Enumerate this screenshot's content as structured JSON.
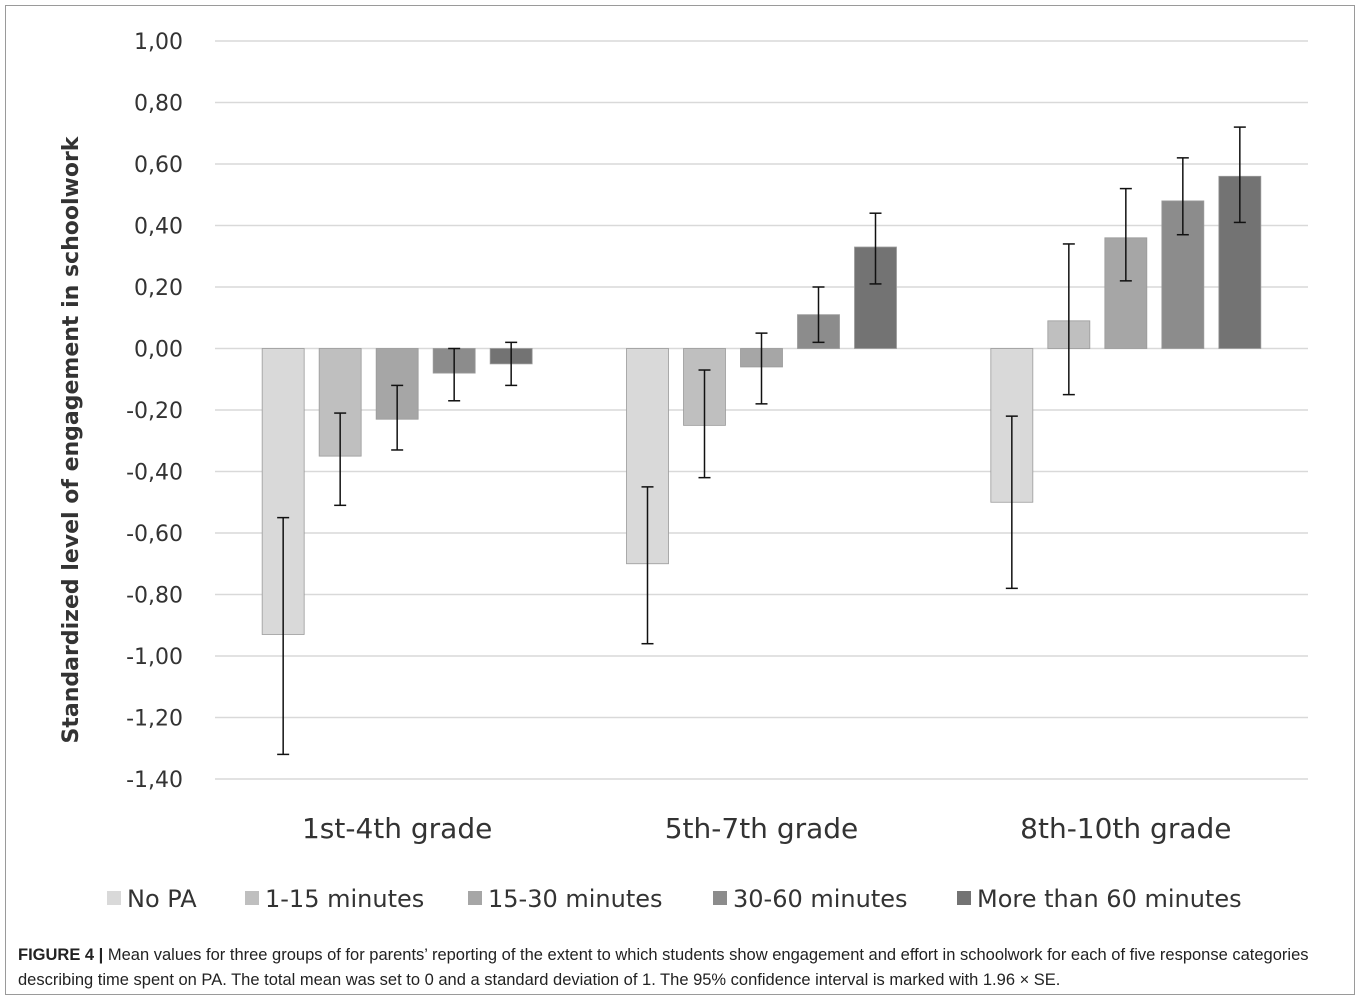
{
  "chart_data": {
    "type": "bar",
    "title": "",
    "xlabel": "",
    "ylabel": "Standardized level of engagement in schoolwork",
    "ylim": [
      -1.4,
      1.0
    ],
    "yticks": [
      1.0,
      0.8,
      0.6,
      0.4,
      0.2,
      0.0,
      -0.2,
      -0.4,
      -0.6,
      -0.8,
      -1.0,
      -1.2,
      -1.4
    ],
    "ytick_labels": [
      "1,00",
      "0,80",
      "0,60",
      "0,40",
      "0,20",
      "0,00",
      "-0,20",
      "-0,40",
      "-0,60",
      "-0,80",
      "-1,00",
      "-1,20",
      "-1,40"
    ],
    "grid": true,
    "legend_position": "bottom",
    "categories": [
      "1st-4th grade",
      "5th-7th grade",
      "8th-10th grade"
    ],
    "series": [
      {
        "name": "No PA",
        "color": "#d9d9d9",
        "values": [
          -0.93,
          -0.7,
          -0.5
        ],
        "ci_low": [
          -1.32,
          -0.96,
          -0.78
        ],
        "ci_high": [
          -0.55,
          -0.45,
          -0.22
        ]
      },
      {
        "name": "1-15 minutes",
        "color": "#bfbfbf",
        "values": [
          -0.35,
          -0.25,
          0.09
        ],
        "ci_low": [
          -0.51,
          -0.42,
          -0.15
        ],
        "ci_high": [
          -0.21,
          -0.07,
          0.34
        ]
      },
      {
        "name": "15-30 minutes",
        "color": "#a6a6a6",
        "values": [
          -0.23,
          -0.06,
          0.36
        ],
        "ci_low": [
          -0.33,
          -0.18,
          0.22
        ],
        "ci_high": [
          -0.12,
          0.05,
          0.52
        ]
      },
      {
        "name": "30-60 minutes",
        "color": "#8c8c8c",
        "values": [
          -0.08,
          0.11,
          0.48
        ],
        "ci_low": [
          -0.17,
          0.02,
          0.37
        ],
        "ci_high": [
          0.0,
          0.2,
          0.62
        ]
      },
      {
        "name": "More than 60 minutes",
        "color": "#737373",
        "values": [
          -0.05,
          0.33,
          0.56
        ],
        "ci_low": [
          -0.12,
          0.21,
          0.41
        ],
        "ci_high": [
          0.02,
          0.44,
          0.72
        ]
      }
    ]
  },
  "caption": {
    "label": "FIGURE 4 |",
    "text": " Mean values for three groups of for parents’ reporting of the extent to which students show engagement and effort in schoolwork for each of five response categories describing time spent on PA. The total mean was set to 0 and a standard deviation of 1. The 95% confidence interval is marked with 1.96 × SE."
  }
}
